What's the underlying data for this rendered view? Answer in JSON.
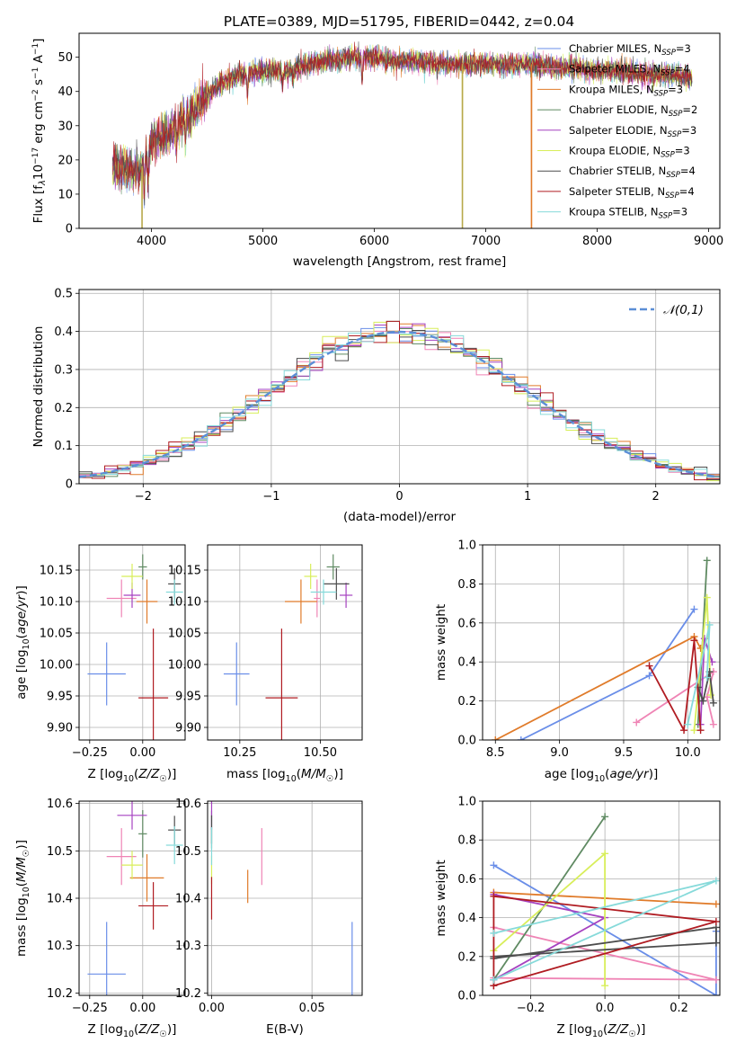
{
  "figure": {
    "title": "PLATE=0389, MJD=51795, FIBERID=0442, z=0.04"
  },
  "models": [
    {
      "name": "Chabrier MILES, N$_{SSP}$=3",
      "label_main": "Chabrier MILES, N",
      "label_sub": "SSP",
      "label_tail": "=3",
      "color": "#6a8ee8"
    },
    {
      "name": "Salpeter MILES, N$_{SSP}$=4",
      "label_main": "Salpeter MILES, N",
      "label_sub": "SSP",
      "label_tail": "=4",
      "color": "#ef84b5"
    },
    {
      "name": "Kroupa MILES, N$_{SSP}$=3",
      "label_main": "Kroupa MILES, N",
      "label_sub": "SSP",
      "label_tail": "=3",
      "color": "#e07b2a"
    },
    {
      "name": "Chabrier ELODIE, N$_{SSP}$=2",
      "label_main": "Chabrier ELODIE, N",
      "label_sub": "SSP",
      "label_tail": "=2",
      "color": "#5f8a62"
    },
    {
      "name": "Salpeter ELODIE, N$_{SSP}$=3",
      "label_main": "Salpeter ELODIE, N",
      "label_sub": "SSP",
      "label_tail": "=3",
      "color": "#a642c0"
    },
    {
      "name": "Kroupa ELODIE, N$_{SSP}$=3",
      "label_main": "Kroupa ELODIE, N",
      "label_sub": "SSP",
      "label_tail": "=3",
      "color": "#d8ee5a"
    },
    {
      "name": "Chabrier STELIB, N$_{SSP}$=4",
      "label_main": "Chabrier STELIB, N",
      "label_sub": "SSP",
      "label_tail": "=4",
      "color": "#4d4d4d"
    },
    {
      "name": "Salpeter STELIB, N$_{SSP}$=4",
      "label_main": "Salpeter STELIB, N",
      "label_sub": "SSP",
      "label_tail": "=4",
      "color": "#b01c22"
    },
    {
      "name": "Kroupa STELIB, N$_{SSP}$=3",
      "label_main": "Kroupa STELIB, N",
      "label_sub": "SSP",
      "label_tail": "=3",
      "color": "#86dada"
    }
  ],
  "chart_data": [
    {
      "id": "spectrum",
      "type": "line",
      "title": "PLATE=0389, MJD=51795, FIBERID=0442, z=0.04",
      "xlabel": "wavelength [Angstrom, rest frame]",
      "ylabel_main": "Flux [f",
      "ylabel_tail": "10",
      "ylabel": "Flux [fλ10^-17 erg cm^-2 s^-1 A^-1]",
      "xlim": [
        3350,
        9100
      ],
      "ylim": [
        0,
        57
      ],
      "xticks": [
        4000,
        5000,
        6000,
        7000,
        8000,
        9000
      ],
      "yticks": [
        0,
        10,
        20,
        30,
        40,
        50
      ],
      "envelope": [
        [
          3650,
          18
        ],
        [
          3800,
          17
        ],
        [
          3900,
          17
        ],
        [
          4000,
          25
        ],
        [
          4200,
          29
        ],
        [
          4400,
          35
        ],
        [
          4600,
          42
        ],
        [
          4800,
          45
        ],
        [
          5000,
          46
        ],
        [
          5200,
          46
        ],
        [
          5400,
          48
        ],
        [
          5600,
          49
        ],
        [
          5800,
          50
        ],
        [
          6000,
          50
        ],
        [
          6200,
          49
        ],
        [
          6400,
          49
        ],
        [
          6600,
          48
        ],
        [
          6800,
          48
        ],
        [
          7000,
          48
        ],
        [
          7200,
          48
        ],
        [
          7400,
          48
        ],
        [
          7600,
          47
        ],
        [
          7800,
          47
        ],
        [
          8000,
          46
        ],
        [
          8200,
          46
        ],
        [
          8400,
          45
        ],
        [
          8600,
          45
        ],
        [
          8850,
          44
        ]
      ],
      "absorption_lines": [
        [
          3934,
          8
        ],
        [
          3969,
          9
        ],
        [
          4102,
          26
        ],
        [
          4227,
          24
        ],
        [
          4305,
          22
        ],
        [
          4340,
          30
        ],
        [
          4861,
          38
        ],
        [
          5175,
          40
        ],
        [
          5270,
          43
        ],
        [
          5890,
          40
        ],
        [
          6563,
          46
        ]
      ],
      "dropouts": [
        {
          "x": 3915,
          "model": 5
        },
        {
          "x": 6790,
          "model": 5
        },
        {
          "x": 7410,
          "model": 2
        }
      ],
      "legend_loc": "upper right",
      "grid": false
    },
    {
      "id": "residuals",
      "type": "line",
      "xlabel": "(data-model)/error",
      "ylabel": "Normed distribution",
      "xlim": [
        -2.5,
        2.5
      ],
      "ylim": [
        0,
        0.51
      ],
      "xticks": [
        -2,
        -1,
        0,
        1,
        2
      ],
      "yticks": [
        0.0,
        0.1,
        0.2,
        0.3,
        0.4,
        0.5
      ],
      "bin_width": 0.1,
      "legend": "N(0,1)",
      "legend_loc": "upper right",
      "grid": true
    },
    {
      "id": "age_vs_Z",
      "type": "scatter",
      "xlabel": "Z [log10(Z/Z☉)]",
      "ylabel": "age [log10(age/yr)]",
      "xlim": [
        -0.3,
        0.2
      ],
      "ylim": [
        9.88,
        10.19
      ],
      "xticks": [
        -0.25,
        0.0
      ],
      "xtick_labels": [
        "−0.25",
        "0.00"
      ],
      "yticks": [
        9.9,
        9.95,
        10.0,
        10.05,
        10.1,
        10.15
      ],
      "ytick_labels": [
        "9.90",
        "9.95",
        "10.00",
        "10.05",
        "10.10",
        "10.15"
      ],
      "points": [
        {
          "model": 0,
          "x": -0.17,
          "y": 9.985,
          "xerr": 0.09,
          "yerr": 0.05
        },
        {
          "model": 1,
          "x": -0.1,
          "y": 10.105,
          "xerr": 0.07,
          "yerr": 0.03
        },
        {
          "model": 2,
          "x": 0.02,
          "y": 10.1,
          "xerr": 0.05,
          "yerr": 0.035
        },
        {
          "model": 3,
          "x": 0.0,
          "y": 10.155,
          "xerr": 0.02,
          "yerr": 0.02
        },
        {
          "model": 4,
          "x": -0.05,
          "y": 10.11,
          "xerr": 0.04,
          "yerr": 0.02
        },
        {
          "model": 5,
          "x": -0.05,
          "y": 10.14,
          "xerr": 0.05,
          "yerr": 0.02
        },
        {
          "model": 6,
          "x": 0.15,
          "y": 10.128,
          "xerr": 0.03,
          "yerr": 0.025
        },
        {
          "model": 7,
          "x": 0.05,
          "y": 9.947,
          "xerr": 0.07,
          "yerr": 0.11
        },
        {
          "model": 8,
          "x": 0.15,
          "y": 10.115,
          "xerr": 0.04,
          "yerr": 0.02
        }
      ],
      "grid": true
    },
    {
      "id": "age_vs_mass",
      "type": "scatter",
      "xlabel": "mass [log10(M/M☉)]",
      "ylabel": "",
      "xlim": [
        10.15,
        10.63
      ],
      "ylim": [
        9.88,
        10.19
      ],
      "xticks": [
        10.25,
        10.5
      ],
      "xtick_labels": [
        "10.25",
        "10.50"
      ],
      "yticks": [
        9.9,
        9.95,
        10.0,
        10.05,
        10.1,
        10.15
      ],
      "ytick_labels": [
        "9.90",
        "9.95",
        "10.00",
        "10.05",
        "10.10",
        "10.15"
      ],
      "points": [
        {
          "model": 0,
          "x": 10.24,
          "y": 9.985,
          "xerr": 0.04,
          "yerr": 0.05
        },
        {
          "model": 1,
          "x": 10.49,
          "y": 10.105,
          "xerr": 0.01,
          "yerr": 0.03
        },
        {
          "model": 2,
          "x": 10.44,
          "y": 10.1,
          "xerr": 0.05,
          "yerr": 0.035
        },
        {
          "model": 3,
          "x": 10.54,
          "y": 10.155,
          "xerr": 0.02,
          "yerr": 0.02
        },
        {
          "model": 4,
          "x": 10.58,
          "y": 10.11,
          "xerr": 0.02,
          "yerr": 0.02
        },
        {
          "model": 5,
          "x": 10.47,
          "y": 10.14,
          "xerr": 0.02,
          "yerr": 0.02
        },
        {
          "model": 6,
          "x": 10.55,
          "y": 10.128,
          "xerr": 0.04,
          "yerr": 0.025
        },
        {
          "model": 7,
          "x": 10.38,
          "y": 9.947,
          "xerr": 0.05,
          "yerr": 0.11
        },
        {
          "model": 8,
          "x": 10.51,
          "y": 10.115,
          "xerr": 0.04,
          "yerr": 0.02
        }
      ],
      "grid": true
    },
    {
      "id": "weight_vs_age",
      "type": "line",
      "xlabel": "age [log10(age/yr)]",
      "ylabel": "mass weight",
      "xlim": [
        8.4,
        10.25
      ],
      "ylim": [
        0,
        1
      ],
      "xticks": [
        8.5,
        9.0,
        9.5,
        10.0
      ],
      "xtick_labels": [
        "8.5",
        "9.0",
        "9.5",
        "10.0"
      ],
      "yticks": [
        0.0,
        0.2,
        0.4,
        0.6,
        0.8,
        1.0
      ],
      "ytick_labels": [
        "0.0",
        "0.2",
        "0.4",
        "0.6",
        "0.8",
        "1.0"
      ],
      "series": [
        {
          "model": 0,
          "x": [
            8.7,
            9.7,
            10.05
          ],
          "y": [
            0.0,
            0.33,
            0.67
          ]
        },
        {
          "model": 1,
          "x": [
            9.6,
            10.2,
            10.15,
            10.2
          ],
          "y": [
            0.09,
            0.35,
            0.22,
            0.08
          ]
        },
        {
          "model": 2,
          "x": [
            8.5,
            10.05,
            10.1
          ],
          "y": [
            0.0,
            0.53,
            0.47
          ]
        },
        {
          "model": 3,
          "x": [
            10.08,
            10.15
          ],
          "y": [
            0.08,
            0.92
          ]
        },
        {
          "model": 4,
          "x": [
            10.1,
            10.13,
            10.19
          ],
          "y": [
            0.08,
            0.52,
            0.4
          ]
        },
        {
          "model": 5,
          "x": [
            10.05,
            10.15,
            10.18
          ],
          "y": [
            0.05,
            0.73,
            0.23
          ]
        },
        {
          "model": 6,
          "x": [
            10.08,
            10.12,
            10.17,
            10.2
          ],
          "y": [
            0.27,
            0.2,
            0.35,
            0.19
          ]
        },
        {
          "model": 7,
          "x": [
            9.7,
            9.97,
            10.05,
            10.1
          ],
          "y": [
            0.38,
            0.05,
            0.51,
            0.05
          ]
        },
        {
          "model": 8,
          "x": [
            10.0,
            10.17,
            10.15
          ],
          "y": [
            0.08,
            0.59,
            0.32
          ]
        }
      ],
      "grid": true
    },
    {
      "id": "mass_vs_Z",
      "type": "scatter",
      "xlabel": "Z [log10(Z/Z☉)]",
      "ylabel": "mass [log10(M/M☉)]",
      "xlim": [
        -0.3,
        0.2
      ],
      "ylim": [
        10.195,
        10.605
      ],
      "xticks": [
        -0.25,
        0.0
      ],
      "xtick_labels": [
        "−0.25",
        "0.00"
      ],
      "yticks": [
        10.2,
        10.3,
        10.4,
        10.5,
        10.6
      ],
      "ytick_labels": [
        "10.2",
        "10.3",
        "10.4",
        "10.5",
        "10.6"
      ],
      "points": [
        {
          "model": 0,
          "x": -0.17,
          "y": 10.24,
          "xerr": 0.09,
          "yerr": 0.11
        },
        {
          "model": 1,
          "x": -0.1,
          "y": 10.488,
          "xerr": 0.07,
          "yerr": 0.06
        },
        {
          "model": 2,
          "x": 0.02,
          "y": 10.443,
          "xerr": 0.08,
          "yerr": 0.05
        },
        {
          "model": 3,
          "x": 0.0,
          "y": 10.536,
          "xerr": 0.02,
          "yerr": 0.05
        },
        {
          "model": 4,
          "x": -0.05,
          "y": 10.575,
          "xerr": 0.07,
          "yerr": 0.03
        },
        {
          "model": 5,
          "x": -0.05,
          "y": 10.47,
          "xerr": 0.05,
          "yerr": 0.03
        },
        {
          "model": 6,
          "x": 0.15,
          "y": 10.544,
          "xerr": 0.03,
          "yerr": 0.03
        },
        {
          "model": 7,
          "x": 0.05,
          "y": 10.384,
          "xerr": 0.07,
          "yerr": 0.05
        },
        {
          "model": 8,
          "x": 0.15,
          "y": 10.512,
          "xerr": 0.04,
          "yerr": 0.04
        }
      ],
      "grid": true
    },
    {
      "id": "mass_vs_ebv",
      "type": "scatter",
      "xlabel": "E(B-V)",
      "ylabel": "",
      "xlim": [
        -0.002,
        0.075
      ],
      "ylim": [
        10.195,
        10.605
      ],
      "xticks": [
        0.0,
        0.05
      ],
      "xtick_labels": [
        "0.00",
        "0.05"
      ],
      "yticks": [
        10.2,
        10.3,
        10.4,
        10.5,
        10.6
      ],
      "ytick_labels": [
        "10.2",
        "10.3",
        "10.4",
        "10.5",
        "10.6"
      ],
      "points": [
        {
          "model": 0,
          "x": 0.07,
          "y": 10.24,
          "xerr": 0.0,
          "yerr": 0.11
        },
        {
          "model": 1,
          "x": 0.025,
          "y": 10.488,
          "xerr": 0.0,
          "yerr": 0.06
        },
        {
          "model": 2,
          "x": 0.018,
          "y": 10.425,
          "xerr": 0.0,
          "yerr": 0.035
        },
        {
          "model": 3,
          "x": 0.0,
          "y": 10.545,
          "xerr": 0.0,
          "yerr": 0.04
        },
        {
          "model": 4,
          "x": 0.0,
          "y": 10.575,
          "xerr": 0.0,
          "yerr": 0.03
        },
        {
          "model": 5,
          "x": 0.0,
          "y": 10.46,
          "xerr": 0.0,
          "yerr": 0.03
        },
        {
          "model": 6,
          "x": 0.0,
          "y": 10.545,
          "xerr": 0.0,
          "yerr": 0.03
        },
        {
          "model": 7,
          "x": 0.0,
          "y": 10.4,
          "xerr": 0.0,
          "yerr": 0.045
        },
        {
          "model": 8,
          "x": 0.0,
          "y": 10.51,
          "xerr": 0.0,
          "yerr": 0.04
        }
      ],
      "grid": true
    },
    {
      "id": "weight_vs_Z",
      "type": "line",
      "xlabel": "Z [log10(Z/Z☉)]",
      "ylabel": "mass weight",
      "xlim": [
        -0.33,
        0.31
      ],
      "ylim": [
        0,
        1
      ],
      "xticks": [
        -0.2,
        0.0,
        0.2
      ],
      "xtick_labels": [
        "−0.2",
        "0.0",
        "0.2"
      ],
      "yticks": [
        0.0,
        0.2,
        0.4,
        0.6,
        0.8,
        1.0
      ],
      "ytick_labels": [
        "0.0",
        "0.2",
        "0.4",
        "0.6",
        "0.8",
        "1.0"
      ],
      "series": [
        {
          "model": 0,
          "x": [
            -0.3,
            0.3,
            0.3
          ],
          "y": [
            0.67,
            0.0,
            0.33
          ]
        },
        {
          "model": 1,
          "x": [
            -0.3,
            0.3,
            -0.3
          ],
          "y": [
            0.35,
            0.08,
            0.09
          ]
        },
        {
          "model": 2,
          "x": [
            -0.3,
            0.3,
            0.0
          ],
          "y": [
            0.53,
            0.47,
            0.5
          ]
        },
        {
          "model": 3,
          "x": [
            -0.3,
            0.0
          ],
          "y": [
            0.08,
            0.92
          ]
        },
        {
          "model": 4,
          "x": [
            -0.3,
            0.0,
            -0.3
          ],
          "y": [
            0.08,
            0.4,
            0.52
          ]
        },
        {
          "model": 5,
          "x": [
            -0.3,
            0.0,
            0.0
          ],
          "y": [
            0.23,
            0.73,
            0.05
          ]
        },
        {
          "model": 6,
          "x": [
            -0.3,
            0.3,
            0.3,
            -0.3
          ],
          "y": [
            0.2,
            0.27,
            0.35,
            0.19
          ]
        },
        {
          "model": 7,
          "x": [
            -0.3,
            0.3,
            -0.3,
            -0.3
          ],
          "y": [
            0.05,
            0.38,
            0.51,
            0.05
          ]
        },
        {
          "model": 8,
          "x": [
            -0.3,
            0.3,
            -0.3
          ],
          "y": [
            0.32,
            0.59,
            0.08
          ]
        }
      ],
      "grid": true
    }
  ]
}
